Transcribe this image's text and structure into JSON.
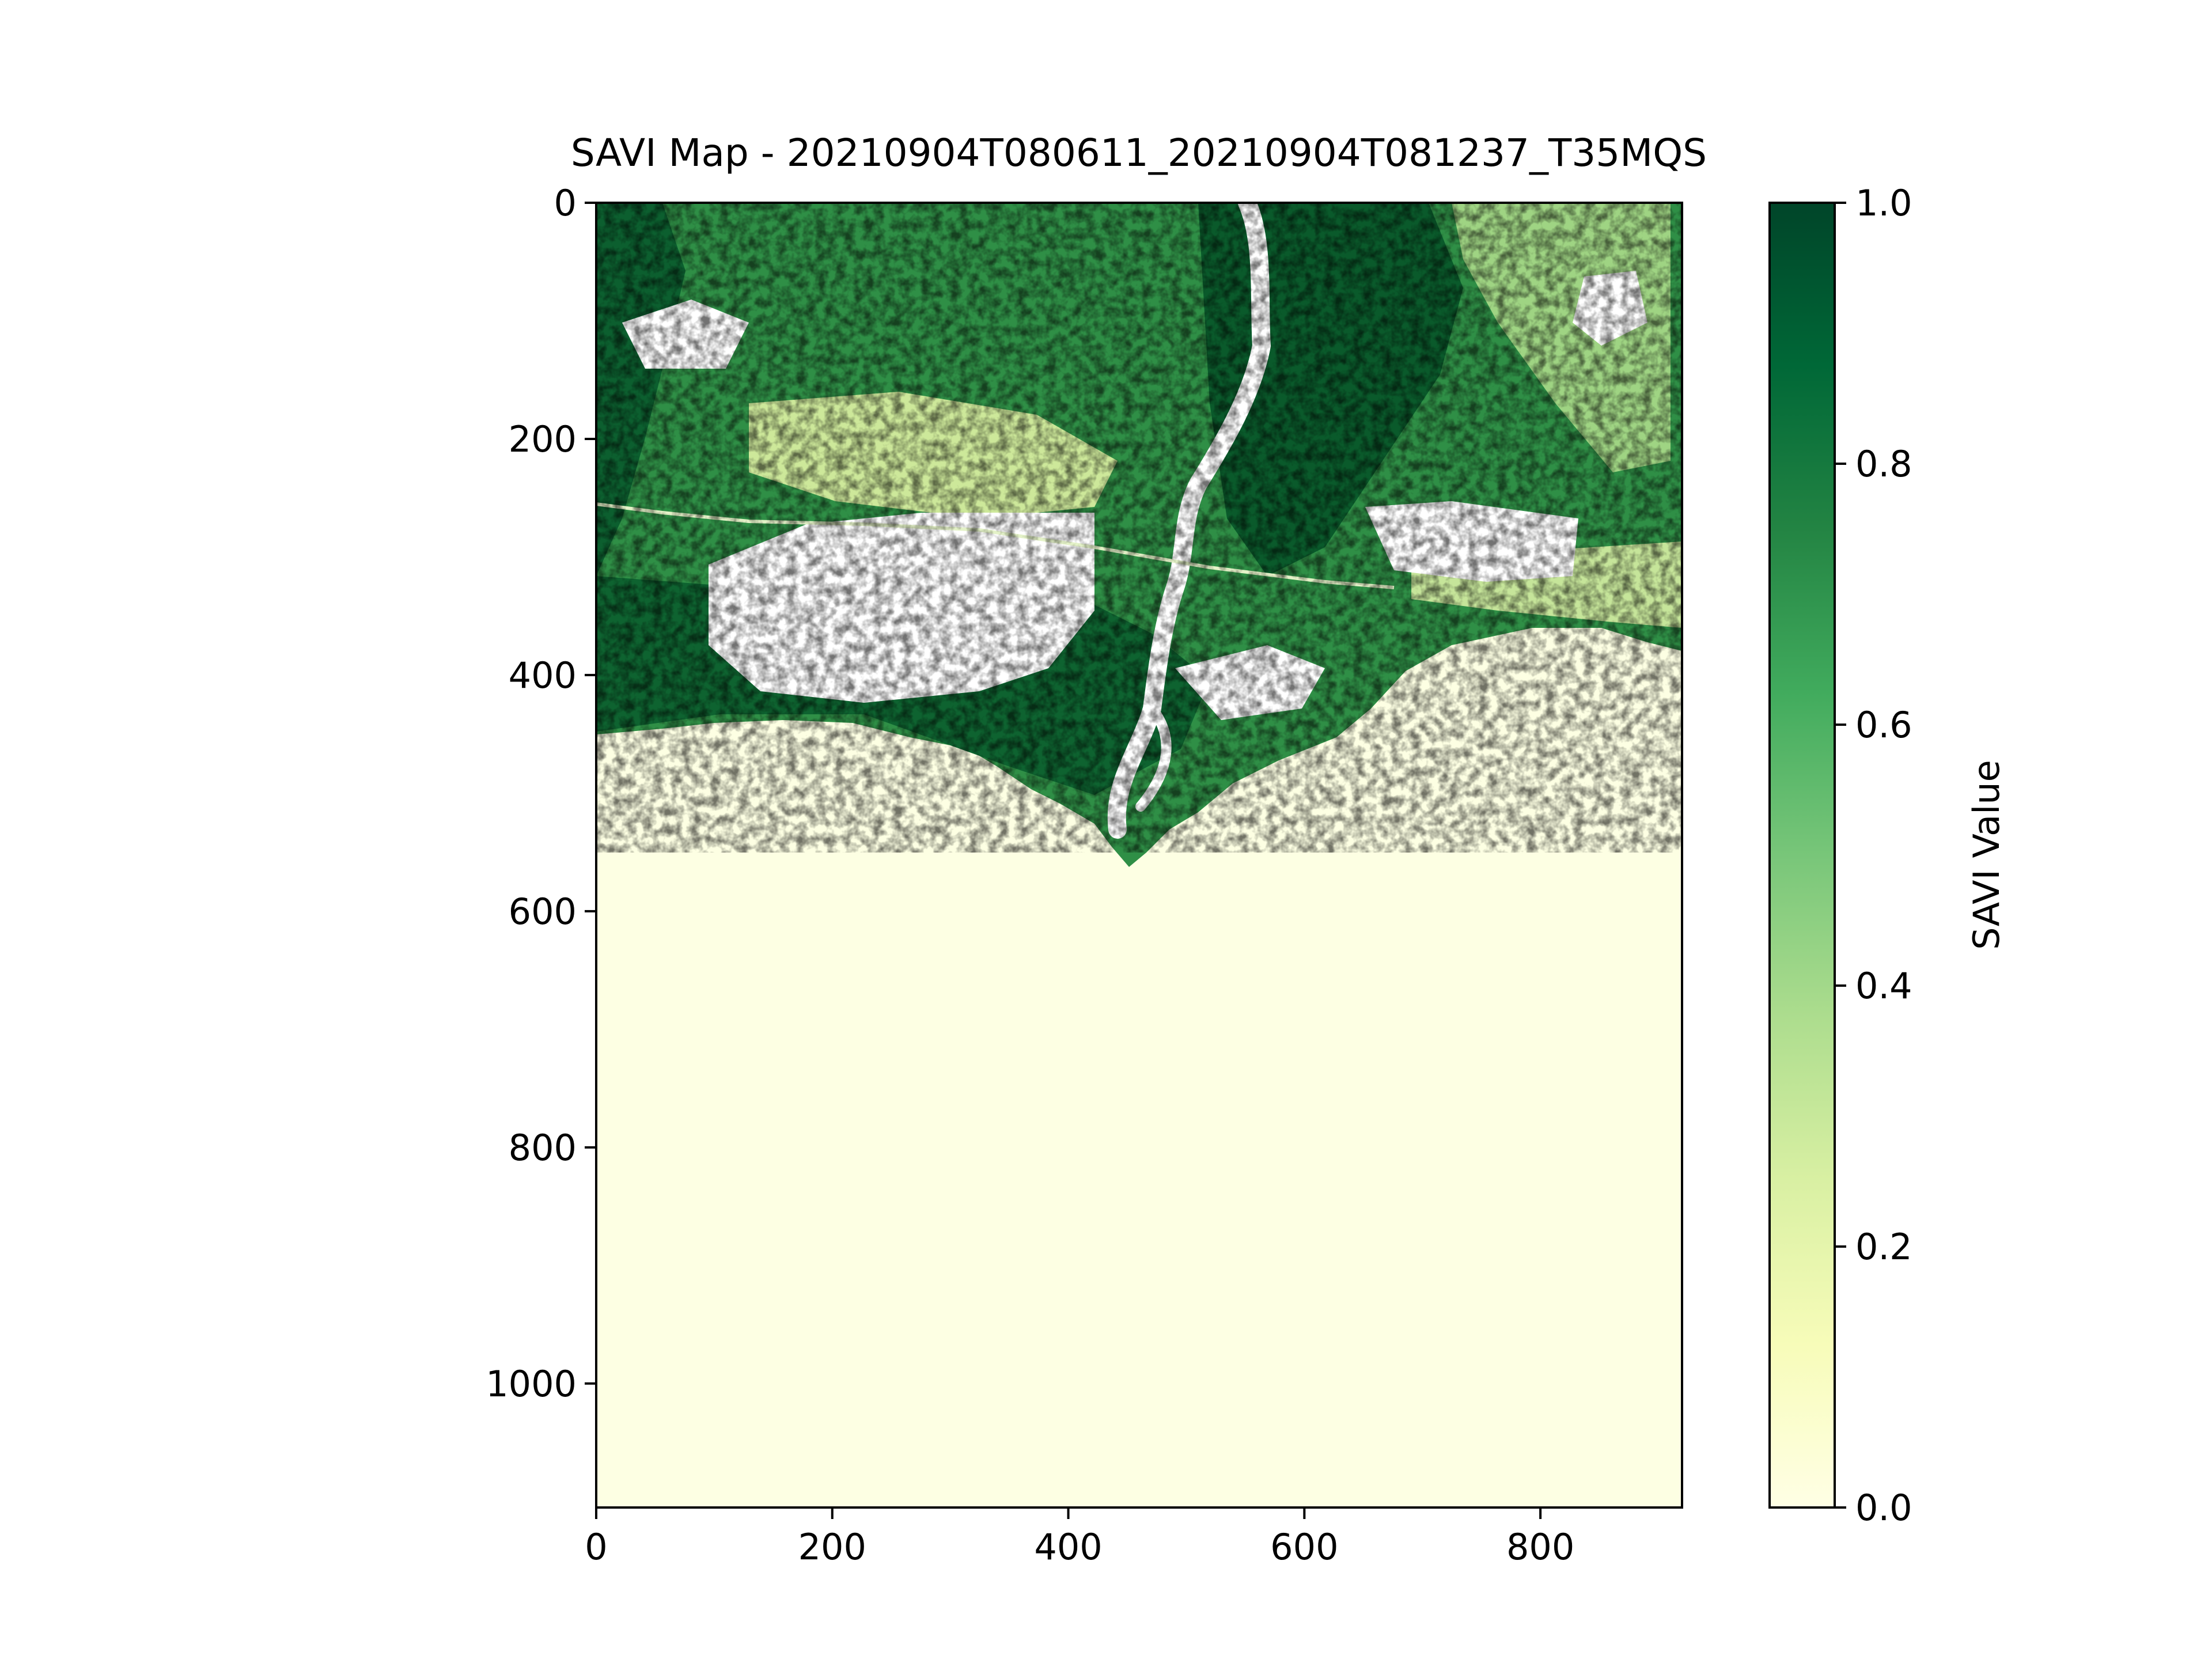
{
  "chart_data": {
    "type": "heatmap",
    "title": "SAVI Map - 20210904T080611_20210904T081237_T35MQS",
    "xlabel": "",
    "ylabel": "",
    "x_ticks": [
      0,
      200,
      400,
      600,
      800
    ],
    "y_ticks": [
      0,
      200,
      400,
      600,
      800,
      1000
    ],
    "x_tick_labels": [
      "0",
      "200",
      "400",
      "600",
      "800"
    ],
    "y_tick_labels": [
      "0",
      "200",
      "400",
      "600",
      "800",
      "1000"
    ],
    "xlim": [
      0,
      920
    ],
    "ylim": [
      1105,
      0
    ],
    "grid": false,
    "colorbar": {
      "label": "SAVI Value",
      "range": [
        0.0,
        1.0
      ],
      "ticks": [
        0.0,
        0.2,
        0.4,
        0.6,
        0.8,
        1.0
      ],
      "tick_labels": [
        "0.0",
        "0.2",
        "0.4",
        "0.6",
        "0.8",
        "1.0"
      ],
      "colormap": "YlGn",
      "colors": [
        "#ffffe5",
        "#f7fcb9",
        "#d9f0a3",
        "#addd8e",
        "#78c679",
        "#41ab5d",
        "#238443",
        "#006837",
        "#004529"
      ]
    },
    "regions": {
      "land_north": {
        "description_value_range": [
          0.3,
          1.0
        ],
        "dominant_value": 0.75
      },
      "cleared_urban": {
        "dominant_value": 0.3
      },
      "sea_south": {
        "dominant_value": 0.0
      },
      "masked_no_data": {
        "color": "#ffffff"
      }
    }
  }
}
